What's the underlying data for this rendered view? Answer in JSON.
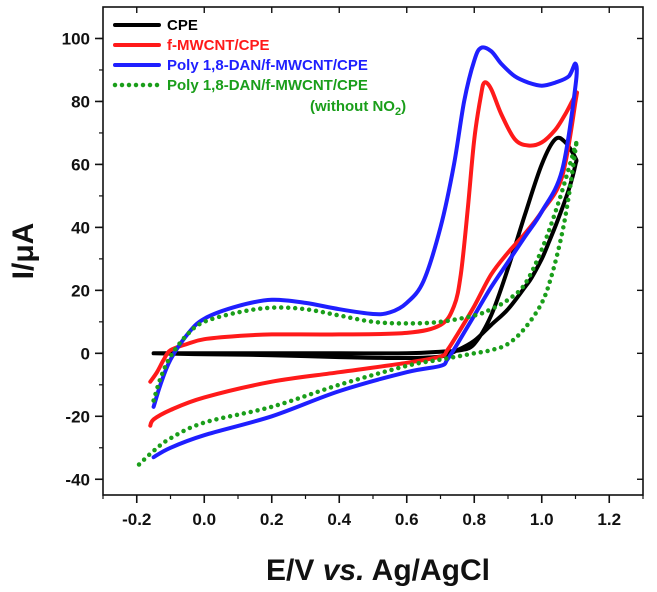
{
  "chart_data": {
    "type": "line",
    "title": "",
    "xlabel_parts": [
      "E/V ",
      "vs.",
      " Ag/AgCl"
    ],
    "ylabel": "I/μA",
    "xlim": [
      -0.3,
      1.3
    ],
    "ylim": [
      -45,
      110
    ],
    "xticks": [
      -0.2,
      0.0,
      0.2,
      0.4,
      0.6,
      0.8,
      1.0,
      1.2
    ],
    "xtick_labels": [
      "-0.2",
      "0.0",
      "0.2",
      "0.4",
      "0.6",
      "0.8",
      "1.0",
      "1.2"
    ],
    "yticks": [
      -40,
      -20,
      0,
      20,
      40,
      60,
      80,
      100
    ],
    "ytick_labels": [
      "-40",
      "-20",
      "0",
      "20",
      "40",
      "60",
      "80",
      "100"
    ],
    "legend_position": "top-left",
    "series": [
      {
        "name": "CPE",
        "color": "#000000",
        "style": "solid",
        "x": [
          -0.15,
          0.0,
          0.2,
          0.4,
          0.6,
          0.7,
          0.76,
          0.8,
          0.85,
          0.9,
          0.95,
          1.0,
          1.04,
          1.07,
          1.1,
          1.1,
          1.08,
          1.05,
          1.02,
          1.0,
          0.97,
          0.95,
          0.9,
          0.85,
          0.8,
          0.75,
          0.7,
          0.6,
          0.4,
          0.2,
          0.0,
          -0.15
        ],
        "y": [
          0,
          0,
          0,
          0,
          0,
          0.5,
          1,
          3,
          12,
          27,
          44,
          60,
          68,
          67,
          62,
          60,
          52,
          43,
          35,
          30,
          24,
          21,
          14,
          9,
          4,
          1,
          -1,
          -1.5,
          -1.2,
          -0.6,
          -0.3,
          0
        ]
      },
      {
        "name": "f-MWCNT/CPE",
        "color": "#ff1a1a",
        "style": "solid",
        "x": [
          -0.16,
          -0.14,
          -0.12,
          -0.1,
          -0.05,
          0.0,
          0.1,
          0.2,
          0.4,
          0.6,
          0.7,
          0.74,
          0.76,
          0.78,
          0.8,
          0.82,
          0.83,
          0.85,
          0.88,
          0.92,
          0.96,
          1.0,
          1.04,
          1.07,
          1.1,
          1.1,
          1.06,
          1.0,
          0.95,
          0.9,
          0.85,
          0.8,
          0.75,
          0.72,
          0.7,
          0.6,
          0.4,
          0.2,
          0.0,
          -0.1,
          -0.15,
          -0.16
        ],
        "y": [
          -9,
          -6,
          -2,
          1,
          3,
          4.5,
          5.5,
          6,
          6,
          6.5,
          9,
          15,
          25,
          45,
          68,
          82,
          86,
          84,
          76,
          68,
          66,
          67,
          71,
          76,
          82,
          80,
          56,
          45,
          38,
          32,
          25,
          15,
          6,
          1,
          -1,
          -3,
          -6,
          -9,
          -14,
          -18,
          -21,
          -23
        ]
      },
      {
        "name": "Poly 1,8-DAN/f-MWCNT/CPE",
        "color": "#1f1fff",
        "style": "solid",
        "x": [
          -0.15,
          -0.13,
          -0.1,
          -0.05,
          0.0,
          0.1,
          0.2,
          0.3,
          0.4,
          0.5,
          0.55,
          0.6,
          0.65,
          0.7,
          0.74,
          0.77,
          0.8,
          0.82,
          0.85,
          0.88,
          0.92,
          0.96,
          1.0,
          1.04,
          1.08,
          1.1,
          1.1,
          1.06,
          1.0,
          0.95,
          0.9,
          0.85,
          0.8,
          0.75,
          0.72,
          0.7,
          0.6,
          0.4,
          0.2,
          0.0,
          -0.1,
          -0.15
        ],
        "y": [
          -17,
          -10,
          -2,
          6,
          11,
          15,
          17,
          16,
          14,
          12.5,
          13,
          16,
          23,
          40,
          60,
          80,
          93,
          97,
          96,
          92,
          88,
          86,
          85,
          86,
          88,
          92,
          85,
          58,
          45,
          37,
          29,
          21,
          12,
          3,
          -2,
          -4,
          -6,
          -12,
          -20,
          -26,
          -30,
          -33
        ]
      },
      {
        "name": "Poly 1,8-DAN/f-MWCNT/CPE",
        "legend_note": "(without NO",
        "legend_note_sub": "2",
        "legend_note_end": ")",
        "color": "#1a9e1a",
        "style": "dotted",
        "x": [
          -0.15,
          -0.13,
          -0.1,
          -0.05,
          0.0,
          0.1,
          0.2,
          0.3,
          0.4,
          0.5,
          0.6,
          0.7,
          0.8,
          0.85,
          0.9,
          0.95,
          1.0,
          1.05,
          1.1,
          1.1,
          1.08,
          1.06,
          1.03,
          1.0,
          0.95,
          0.9,
          0.85,
          0.8,
          0.75,
          0.7,
          0.6,
          0.4,
          0.2,
          0.0,
          -0.1,
          -0.15,
          -0.2
        ],
        "y": [
          -15,
          -8,
          -1,
          6,
          10,
          13,
          14.5,
          14,
          12,
          10,
          9.5,
          10,
          12,
          14,
          17,
          22,
          33,
          48,
          66,
          65,
          50,
          38,
          25,
          16,
          8,
          3,
          1,
          0,
          -1,
          -2,
          -4,
          -10,
          -17,
          -22,
          -27,
          -31,
          -36
        ]
      }
    ]
  }
}
